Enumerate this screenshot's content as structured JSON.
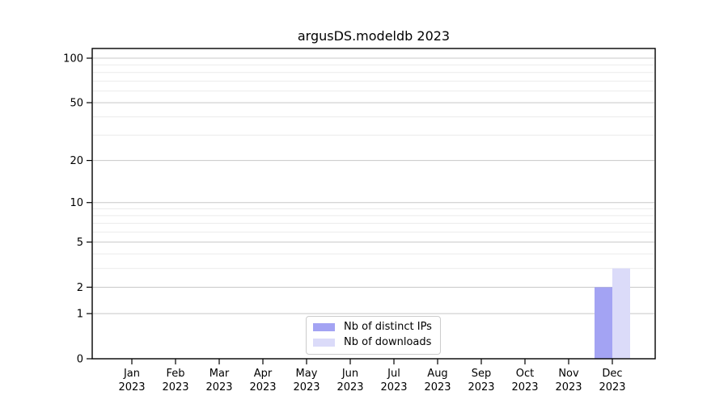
{
  "chart_data": {
    "type": "bar",
    "title": "argusDS.modeldb 2023",
    "categories": [
      {
        "month": "Jan",
        "year": "2023"
      },
      {
        "month": "Feb",
        "year": "2023"
      },
      {
        "month": "Mar",
        "year": "2023"
      },
      {
        "month": "Apr",
        "year": "2023"
      },
      {
        "month": "May",
        "year": "2023"
      },
      {
        "month": "Jun",
        "year": "2023"
      },
      {
        "month": "Jul",
        "year": "2023"
      },
      {
        "month": "Aug",
        "year": "2023"
      },
      {
        "month": "Sep",
        "year": "2023"
      },
      {
        "month": "Oct",
        "year": "2023"
      },
      {
        "month": "Nov",
        "year": "2023"
      },
      {
        "month": "Dec",
        "year": "2023"
      }
    ],
    "series": [
      {
        "name": "Nb of distinct IPs",
        "color": "#a3a3f3",
        "values": [
          0,
          0,
          0,
          0,
          0,
          0,
          0,
          0,
          0,
          0,
          0,
          2
        ]
      },
      {
        "name": "Nb of downloads",
        "color": "#dbdbf9",
        "values": [
          0,
          0,
          0,
          0,
          0,
          0,
          0,
          0,
          0,
          0,
          0,
          3
        ]
      }
    ],
    "xlabel": "",
    "ylabel": "",
    "y_scale": "log1p",
    "ylim": [
      0,
      116
    ],
    "y_ticks": [
      0,
      1,
      2,
      5,
      10,
      20,
      50,
      100
    ],
    "y_minor_gridlines": [
      3,
      4,
      6,
      7,
      8,
      9,
      30,
      40,
      60,
      70,
      80,
      90
    ],
    "grid": "major-and-minor horizontal",
    "legend_position": "lower center",
    "colors": {
      "axis": "#000000",
      "tick_text": "#000000",
      "grid_major": "#c8c8c8",
      "grid_minor": "#ebebeb",
      "legend_border": "#cccccc",
      "background": "#ffffff"
    }
  }
}
